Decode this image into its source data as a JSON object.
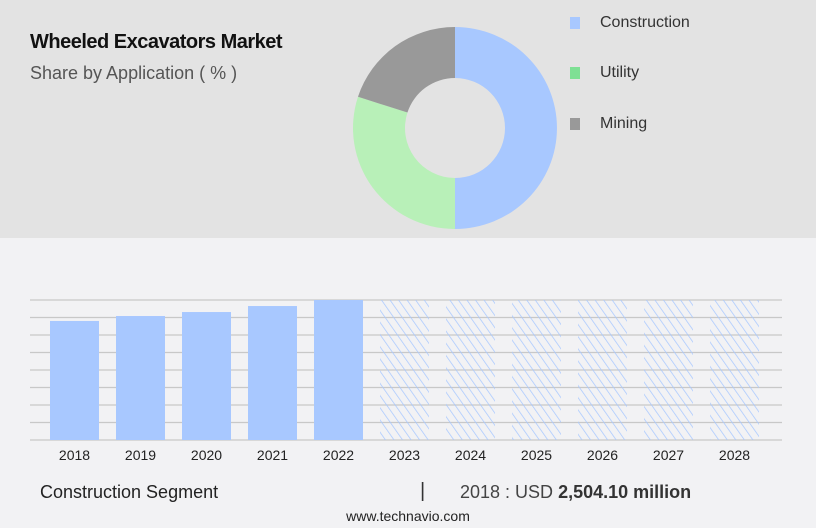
{
  "header": {
    "title": "Wheeled Excavators Market",
    "subtitle": "Share by Application ( % )"
  },
  "chart_data": [
    {
      "type": "pie",
      "donut": true,
      "slices": [
        {
          "name": "Construction",
          "value": 50,
          "color": "#a8c8ff"
        },
        {
          "name": "Utility",
          "value": 30,
          "color": "#b8f0b8"
        },
        {
          "name": "Mining",
          "value": 20,
          "color": "#999999"
        }
      ],
      "legend_colors": [
        "#a8c8ff",
        "#7ee094",
        "#999999"
      ],
      "legend_placement": "right"
    },
    {
      "type": "bar",
      "categories": [
        "2018",
        "2019",
        "2020",
        "2021",
        "2022",
        "2023",
        "2024",
        "2025",
        "2026",
        "2027",
        "2028"
      ],
      "values": [
        2504.1,
        2608,
        2692,
        2818,
        2945,
        null,
        null,
        null,
        null,
        null,
        null
      ],
      "forecast_from": "2023",
      "grid": true,
      "color": "#a8c8ff",
      "ylim": [
        0,
        2945
      ]
    }
  ],
  "footer": {
    "segment": "Construction Segment",
    "separator": "|",
    "value_prefix": "2018 : USD",
    "value": "2,504.10 million",
    "site": "www.technavio.com"
  }
}
